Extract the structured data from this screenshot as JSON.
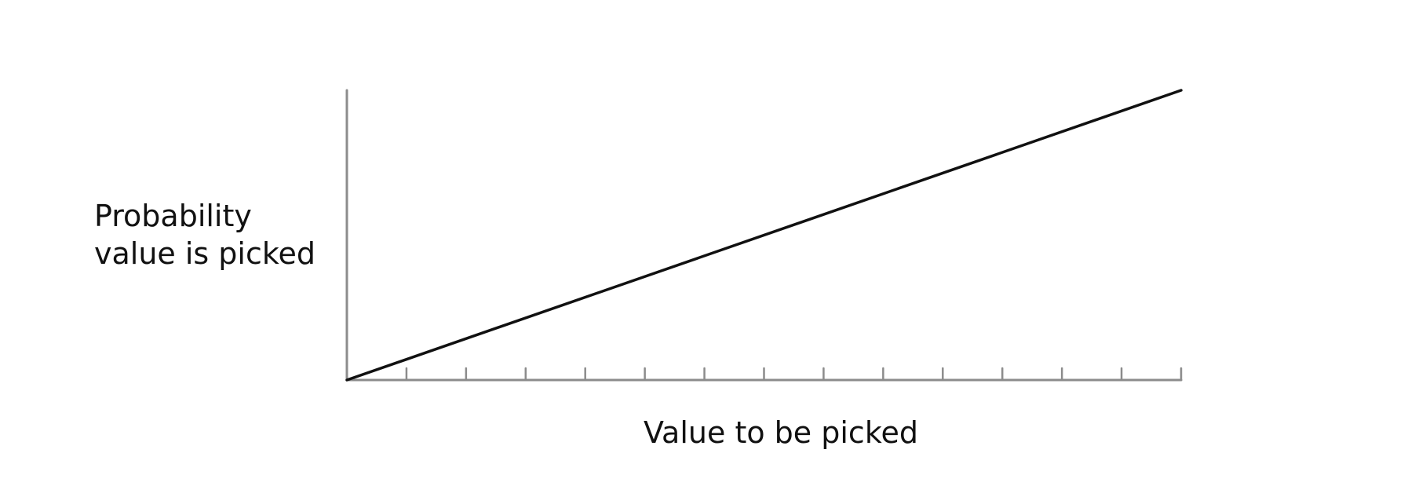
{
  "chart_data": {
    "type": "line",
    "title": "",
    "xlabel": "Value to be picked",
    "ylabel_lines": [
      "Probability",
      "value is picked"
    ],
    "xlim": [
      0,
      14
    ],
    "ylim": [
      0,
      1
    ],
    "x_ticks": [
      0,
      1,
      2,
      3,
      4,
      5,
      6,
      7,
      8,
      9,
      10,
      11,
      12,
      13,
      14
    ],
    "x_tick_labels_shown": false,
    "y_ticks_shown": false,
    "grid": false,
    "legend": "none",
    "series": [
      {
        "x": [
          0,
          14
        ],
        "y": [
          0,
          1
        ],
        "color": "#111111"
      }
    ],
    "colors": {
      "axis": "#8c8c8c",
      "line": "#111111",
      "text": "#111111",
      "background": "#ffffff"
    }
  }
}
